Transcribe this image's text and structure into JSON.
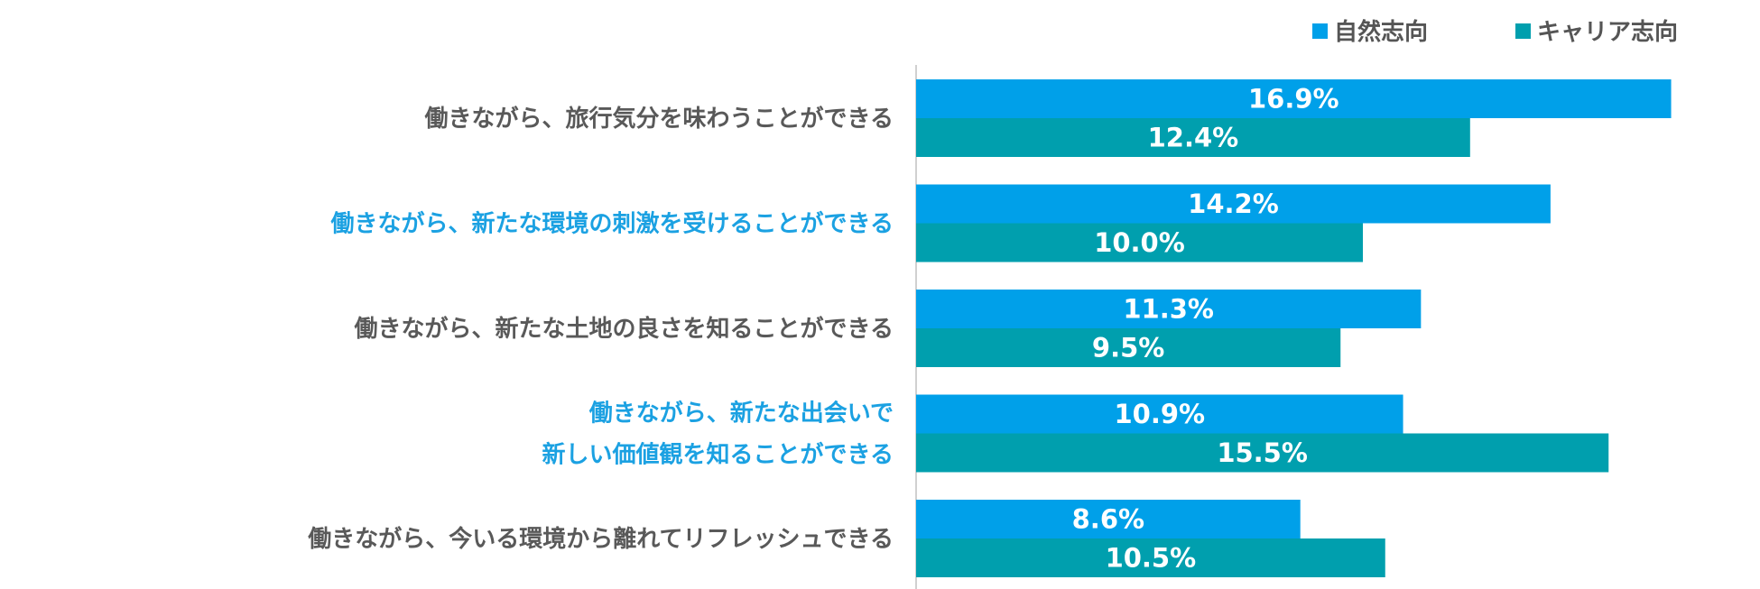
{
  "chart_data": {
    "type": "bar",
    "orientation": "horizontal",
    "categories": [
      [
        "働きながら、旅行気分を味わうことができる"
      ],
      [
        "働きながら、新たな環境の刺激を受けることができる"
      ],
      [
        "働きながら、新たな土地の良さを知ることができる"
      ],
      [
        "働きながら、新たな出会いで",
        "新しい価値観を知ることができる"
      ],
      [
        "働きながら、今いる環境から離れてリフレッシュできる"
      ]
    ],
    "category_colors": [
      "#595959",
      "#1BA1E2",
      "#595959",
      "#1BA1E2",
      "#595959"
    ],
    "series": [
      {
        "name": "自然志向",
        "color": "#00A0E9",
        "values": [
          16.9,
          14.2,
          11.3,
          10.9,
          8.6
        ],
        "labels": [
          "16.9%",
          "14.2%",
          "11.3%",
          "10.9%",
          "8.6%"
        ]
      },
      {
        "name": "キャリア志向",
        "color": "#009FAE",
        "values": [
          12.4,
          10.0,
          9.5,
          15.5,
          10.5
        ],
        "labels": [
          "12.4%",
          "10.0%",
          "9.5%",
          "15.5%",
          "10.5%"
        ]
      }
    ],
    "xlim": [
      0,
      17
    ],
    "grid": false,
    "legend": "top-right",
    "title": "",
    "xlabel": "",
    "ylabel": ""
  }
}
